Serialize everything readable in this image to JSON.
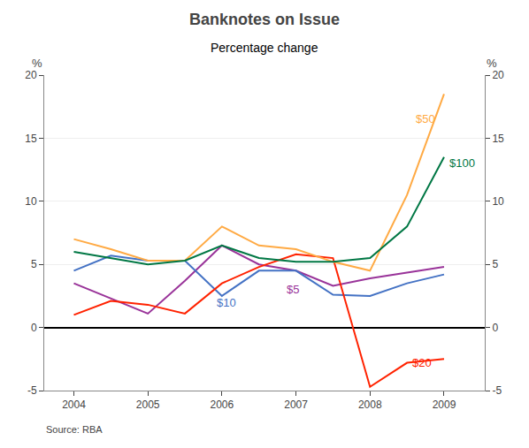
{
  "chart_data": {
    "type": "line",
    "title": "Banknotes on Issue",
    "subtitle": "Percentage change",
    "source": "Source: RBA",
    "ylabel": "%",
    "y2label": "%",
    "xlim": [
      2003.6,
      2009.55
    ],
    "xticks": [
      2004,
      2005,
      2006,
      2007,
      2008,
      2009
    ],
    "ylim": [
      -5,
      20
    ],
    "yticks": [
      -5,
      0,
      5,
      10,
      15,
      20
    ],
    "y2lim": [
      -5,
      20
    ],
    "y2ticks": [
      -5,
      0,
      5,
      10,
      15,
      20
    ],
    "grid": true,
    "series": [
      {
        "name": "$5",
        "color": "#993399",
        "x": [
          2004,
          2005,
          2005.5,
          2006,
          2006.5,
          2007,
          2007.5,
          2008,
          2009
        ],
        "values": [
          3.5,
          1.1,
          3.7,
          6.5,
          5.0,
          4.5,
          3.3,
          3.9,
          4.8
        ]
      },
      {
        "name": "$10",
        "color": "#4472c4",
        "x": [
          2004,
          2004.5,
          2005,
          2005.5,
          2006,
          2006.5,
          2007,
          2007.5,
          2008,
          2008.5,
          2009
        ],
        "values": [
          4.5,
          5.7,
          5.3,
          5.3,
          2.5,
          4.5,
          4.5,
          2.6,
          2.5,
          3.5,
          4.2
        ]
      },
      {
        "name": "$20",
        "color": "#ff2200",
        "x": [
          2004,
          2004.5,
          2005,
          2005.5,
          2006,
          2006.5,
          2007,
          2007.5,
          2008,
          2008.5,
          2009
        ],
        "values": [
          1.0,
          2.1,
          1.8,
          1.1,
          3.5,
          4.8,
          5.8,
          5.5,
          -4.7,
          -2.8,
          -2.5
        ]
      },
      {
        "name": "$50",
        "color": "#ffaa44",
        "x": [
          2004,
          2004.5,
          2005,
          2005.5,
          2006,
          2006.5,
          2007,
          2007.5,
          2008,
          2008.5,
          2009
        ],
        "values": [
          7.0,
          6.2,
          5.3,
          5.3,
          8.0,
          6.5,
          6.2,
          5.2,
          4.5,
          10.5,
          18.5
        ]
      },
      {
        "name": "$100",
        "color": "#007744",
        "x": [
          2004,
          2004.5,
          2005,
          2005.5,
          2006,
          2006.5,
          2007,
          2007.5,
          2008,
          2008.5,
          2009
        ],
        "values": [
          6.0,
          5.5,
          5.0,
          5.3,
          6.5,
          5.5,
          5.2,
          5.2,
          5.5,
          8.0,
          13.5
        ]
      }
    ],
    "annotations": [
      {
        "text": "$5",
        "x": 2006.85,
        "y": 3.0,
        "color": "#993399"
      },
      {
        "text": "$10",
        "x": 2005.9,
        "y": 2.0,
        "color": "#4472c4"
      },
      {
        "text": "$20",
        "x": 2008.55,
        "y": -2.8,
        "color": "#ff2200"
      },
      {
        "text": "$50",
        "x": 2008.6,
        "y": 16.5,
        "color": "#ffaa44"
      },
      {
        "text": "$100",
        "x": 2009.05,
        "y": 13.0,
        "color": "#007744"
      }
    ]
  }
}
